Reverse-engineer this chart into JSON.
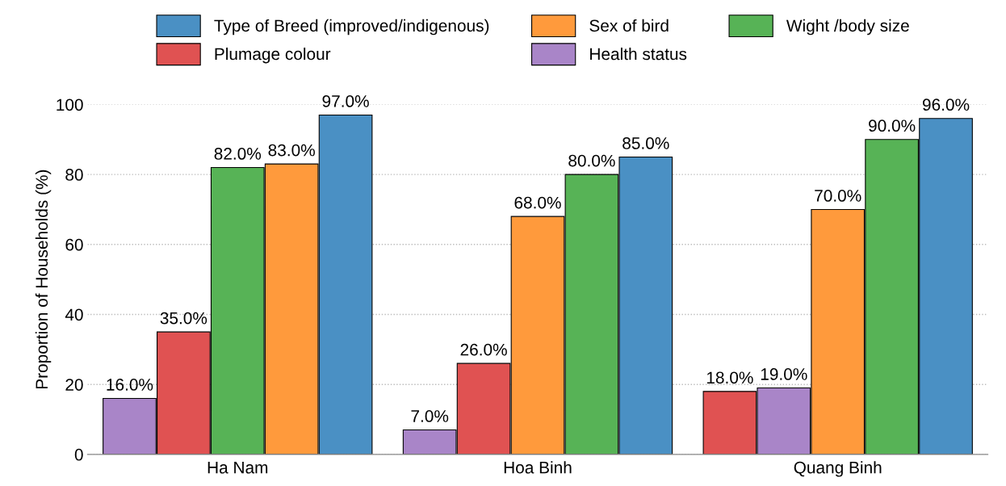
{
  "chart_data": {
    "type": "bar",
    "ylabel": "Proportion of Households (%)",
    "categories": [
      "Ha Nam",
      "Hoa Binh",
      "Quang Binh"
    ],
    "series": [
      {
        "name": "Type of Breed (improved/indigenous)",
        "color": "#4a90c4",
        "values": [
          97,
          85,
          96
        ],
        "value_labels": [
          "97.0%",
          "85.0%",
          "96.0%"
        ]
      },
      {
        "name": "Sex of bird",
        "color": "#ff9a3c",
        "values": [
          83,
          68,
          70
        ],
        "value_labels": [
          "83.0%",
          "68.0%",
          "70.0%"
        ]
      },
      {
        "name": "Wight /body size",
        "color": "#57b356",
        "values": [
          82,
          80,
          90
        ],
        "value_labels": [
          "82.0%",
          "80.0%",
          "90.0%"
        ]
      },
      {
        "name": "Plumage colour",
        "color": "#e05252",
        "values": [
          35,
          26,
          18
        ],
        "value_labels": [
          "35.0%",
          "26.0%",
          "18.0%"
        ]
      },
      {
        "name": "Health status",
        "color": "#a985c8",
        "values": [
          16,
          7,
          19
        ],
        "value_labels": [
          "16.0%",
          "7.0%",
          "19.0%"
        ]
      }
    ],
    "ylim": [
      0,
      100
    ],
    "yticks": [
      0,
      20,
      40,
      60,
      80,
      100
    ],
    "grid": "y",
    "legend": "top"
  }
}
